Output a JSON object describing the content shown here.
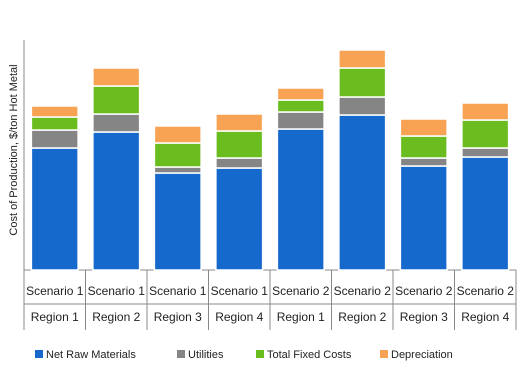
{
  "chart_data": {
    "type": "stacked-bar",
    "y_label": "Cost of Production, $/ton Hot Metal",
    "categories": [
      [
        "Scenario 1",
        "Region 1"
      ],
      [
        "Scenario 1",
        "Region 2"
      ],
      [
        "Scenario 1",
        "Region 3"
      ],
      [
        "Scenario 1",
        "Region 4"
      ],
      [
        "Scenario 2",
        "Region 1"
      ],
      [
        "Scenario 2",
        "Region 2"
      ],
      [
        "Scenario 2",
        "Region 3"
      ],
      [
        "Scenario 2",
        "Region 4"
      ]
    ],
    "series": [
      {
        "name": "Net Raw Materials",
        "color": "#1569cc",
        "values": [
          122,
          138,
          97,
          102,
          141,
          155,
          104,
          113
        ]
      },
      {
        "name": "Utilities",
        "color": "#858585",
        "values": [
          18,
          18,
          6,
          10,
          17,
          18,
          8,
          9
        ]
      },
      {
        "name": "Total Fixed Costs",
        "color": "#6bbd1f",
        "values": [
          13,
          28,
          24,
          27,
          12,
          29,
          22,
          28
        ]
      },
      {
        "name": "Depreciation",
        "color": "#f8a354",
        "values": [
          11,
          18,
          17,
          17,
          12,
          18,
          17,
          17
        ]
      }
    ],
    "ylim": [
      0,
      230
    ],
    "legend": "bottom"
  }
}
